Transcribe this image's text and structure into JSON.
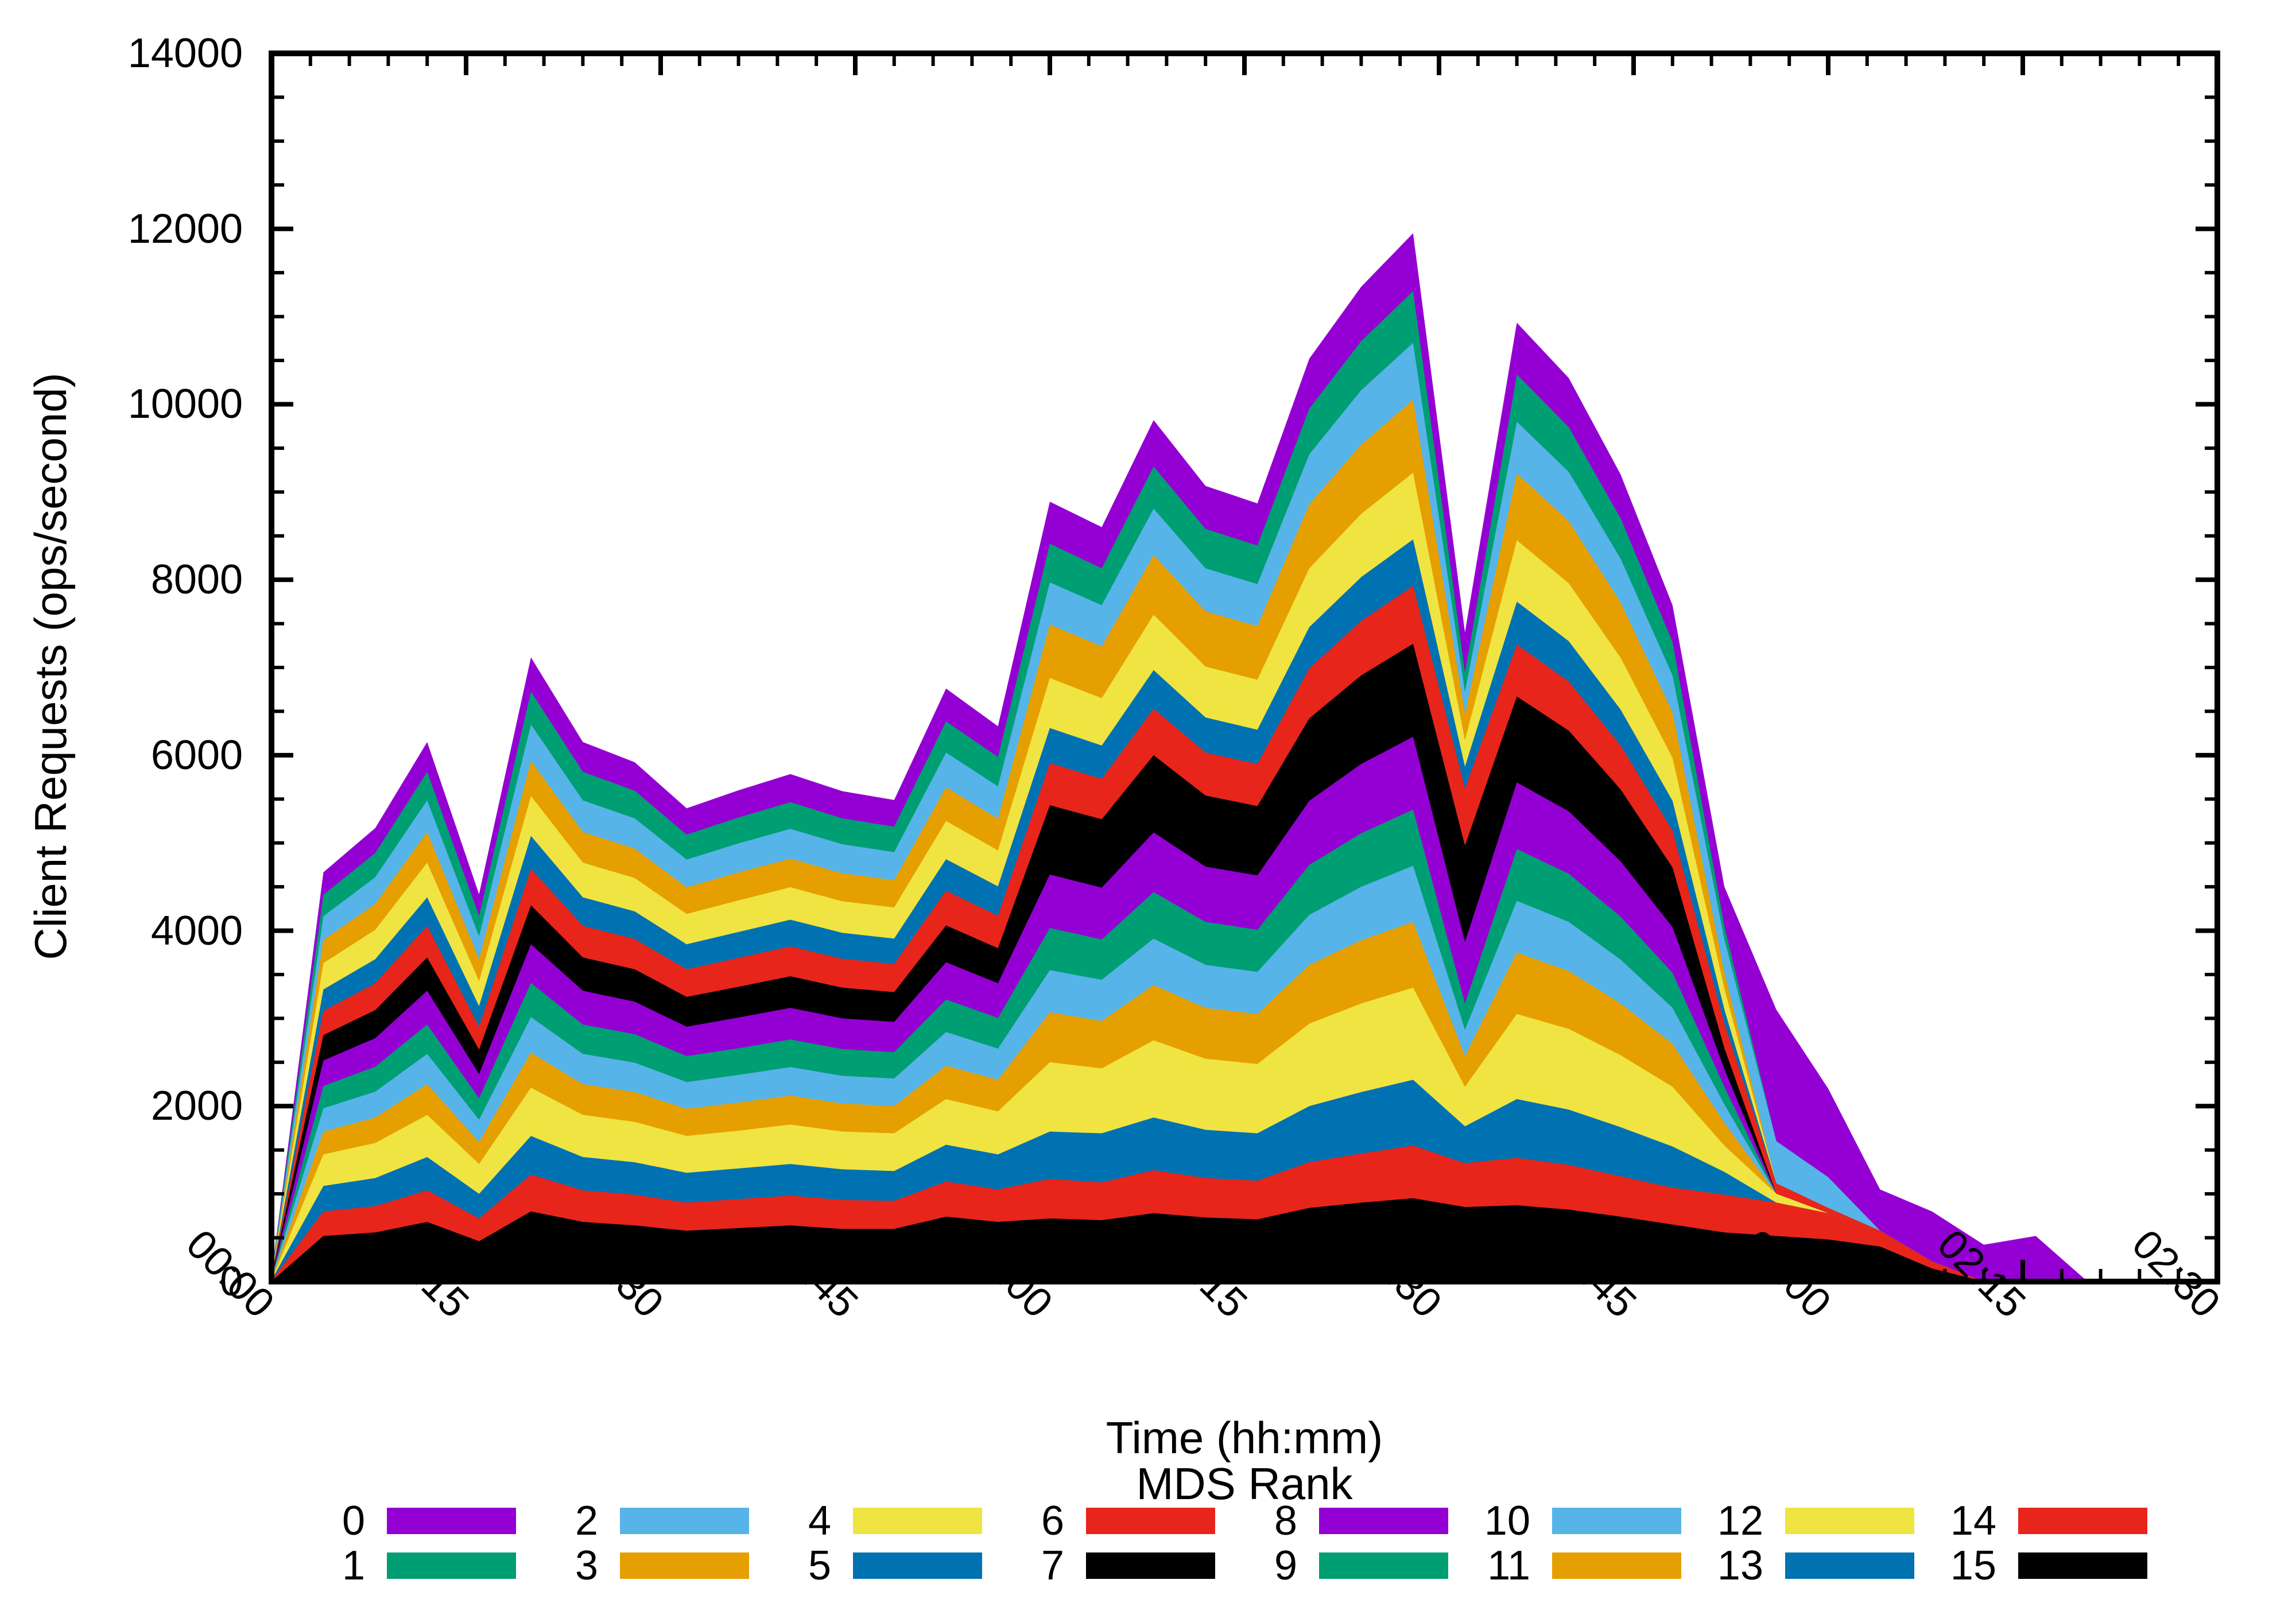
{
  "page": {
    "background": "#ffffff"
  },
  "legend": {
    "title": "MDS Rank",
    "items": [
      {
        "label": "0",
        "color": "#9400D3"
      },
      {
        "label": "1",
        "color": "#009E73"
      },
      {
        "label": "2",
        "color": "#56B4E9"
      },
      {
        "label": "3",
        "color": "#E69F00"
      },
      {
        "label": "4",
        "color": "#F0E442"
      },
      {
        "label": "5",
        "color": "#0072B2"
      },
      {
        "label": "6",
        "color": "#E8251B"
      },
      {
        "label": "7",
        "color": "#000000"
      },
      {
        "label": "8",
        "color": "#9400D3"
      },
      {
        "label": "9",
        "color": "#009E73"
      },
      {
        "label": "10",
        "color": "#56B4E9"
      },
      {
        "label": "11",
        "color": "#E69F00"
      },
      {
        "label": "12",
        "color": "#F0E442"
      },
      {
        "label": "13",
        "color": "#0072B2"
      },
      {
        "label": "14",
        "color": "#E8251B"
      },
      {
        "label": "15",
        "color": "#000000"
      }
    ]
  },
  "chart_data": {
    "type": "area",
    "stacked": true,
    "title": "",
    "xlabel": "Time (hh:mm)",
    "ylabel": "Client Requests (ops/second)",
    "grid": false,
    "legend_position": "bottom",
    "x_axis": {
      "range_minutes": [
        0,
        150
      ],
      "minor_tick_every_minutes": 3,
      "ticks": [
        {
          "minute": 0,
          "label": "00:00"
        },
        {
          "minute": 15,
          "label": "00:15"
        },
        {
          "minute": 30,
          "label": "00:30"
        },
        {
          "minute": 45,
          "label": "00:45"
        },
        {
          "minute": 60,
          "label": "01:00"
        },
        {
          "minute": 75,
          "label": "01:15"
        },
        {
          "minute": 90,
          "label": "01:30"
        },
        {
          "minute": 105,
          "label": "01:45"
        },
        {
          "minute": 120,
          "label": "02:00"
        },
        {
          "minute": 135,
          "label": "02:15"
        },
        {
          "minute": 150,
          "label": "02:30"
        }
      ]
    },
    "y_axis": {
      "range": [
        0,
        14000
      ],
      "minor_tick_every": 500,
      "ticks": [
        {
          "value": 0,
          "label": "0"
        },
        {
          "value": 2000,
          "label": "2000"
        },
        {
          "value": 4000,
          "label": "4000"
        },
        {
          "value": 6000,
          "label": "6000"
        },
        {
          "value": 8000,
          "label": "8000"
        },
        {
          "value": 10000,
          "label": "10000"
        },
        {
          "value": 12000,
          "label": "12000"
        },
        {
          "value": 14000,
          "label": "14000"
        }
      ]
    },
    "stack_order_bottom_to_top": [
      15,
      14,
      13,
      12,
      11,
      10,
      9,
      8,
      7,
      6,
      5,
      4,
      3,
      2,
      1,
      0
    ],
    "x_minutes": [
      0,
      4,
      8,
      12,
      16,
      20,
      24,
      28,
      32,
      36,
      40,
      44,
      48,
      52,
      56,
      60,
      64,
      68,
      72,
      76,
      80,
      84,
      88,
      92,
      96,
      100,
      104,
      108,
      112,
      116,
      120,
      124,
      128,
      132,
      136,
      140
    ],
    "series": [
      {
        "name": "0",
        "color": "#9400D3",
        "values": [
          5,
          255,
          285,
          340,
          245,
          390,
          340,
          325,
          300,
          310,
          320,
          310,
          305,
          375,
          350,
          480,
          470,
          530,
          490,
          480,
          570,
          620,
          660,
          460,
          590,
          560,
          500,
          420,
          450,
          1500,
          1010,
          470,
          570,
          420,
          520,
          0
        ]
      },
      {
        "name": "1",
        "color": "#009E73",
        "values": [
          5,
          245,
          275,
          325,
          235,
          375,
          325,
          315,
          285,
          295,
          305,
          295,
          290,
          355,
          335,
          440,
          420,
          480,
          450,
          440,
          520,
          560,
          590,
          220,
          540,
          510,
          460,
          380,
          150,
          0,
          0,
          0,
          0,
          0,
          0,
          0
        ]
      },
      {
        "name": "2",
        "color": "#56B4E9",
        "values": [
          5,
          270,
          305,
          360,
          260,
          415,
          360,
          345,
          315,
          330,
          340,
          330,
          320,
          395,
          370,
          480,
          470,
          530,
          490,
          480,
          570,
          620,
          650,
          250,
          590,
          560,
          500,
          420,
          380,
          480,
          350,
          0,
          0,
          0,
          0,
          0
        ]
      },
      {
        "name": "3",
        "color": "#E69F00",
        "values": [
          5,
          265,
          295,
          350,
          250,
          400,
          350,
          335,
          305,
          320,
          325,
          320,
          310,
          385,
          360,
          610,
          590,
          680,
          630,
          610,
          730,
          790,
          830,
          300,
          760,
          710,
          630,
          520,
          180,
          0,
          0,
          0,
          0,
          0,
          0,
          0
        ]
      },
      {
        "name": "4",
        "color": "#F0E442",
        "values": [
          5,
          300,
          335,
          395,
          285,
          455,
          395,
          380,
          345,
          360,
          370,
          360,
          355,
          435,
          410,
          570,
          540,
          630,
          580,
          570,
          670,
          720,
          760,
          300,
          700,
          660,
          590,
          490,
          240,
          0,
          0,
          0,
          0,
          0,
          0,
          0
        ]
      },
      {
        "name": "5",
        "color": "#0072B2",
        "values": [
          5,
          245,
          275,
          325,
          235,
          375,
          325,
          315,
          285,
          295,
          305,
          295,
          290,
          360,
          335,
          400,
          380,
          440,
          400,
          390,
          470,
          500,
          530,
          250,
          490,
          460,
          410,
          340,
          160,
          0,
          0,
          0,
          0,
          0,
          0,
          0
        ]
      },
      {
        "name": "6",
        "color": "#E8251B",
        "values": [
          5,
          275,
          305,
          360,
          260,
          415,
          360,
          345,
          315,
          330,
          340,
          330,
          320,
          395,
          370,
          480,
          460,
          530,
          490,
          480,
          570,
          620,
          660,
          650,
          590,
          560,
          500,
          420,
          280,
          120,
          60,
          0,
          0,
          0,
          0,
          0
        ]
      },
      {
        "name": "7",
        "color": "#000000",
        "values": [
          5,
          290,
          320,
          380,
          280,
          445,
          380,
          370,
          340,
          350,
          360,
          350,
          340,
          420,
          400,
          790,
          780,
          880,
          810,
          790,
          940,
          1010,
          1060,
          1100,
          980,
          920,
          820,
          680,
          240,
          0,
          0,
          0,
          0,
          0,
          0,
          0
        ]
      },
      {
        "name": "8",
        "color": "#9400D3",
        "values": [
          5,
          290,
          325,
          385,
          275,
          440,
          385,
          370,
          335,
          350,
          360,
          350,
          345,
          425,
          395,
          610,
          590,
          680,
          630,
          620,
          730,
          790,
          830,
          700,
          760,
          710,
          630,
          520,
          200,
          0,
          0,
          0,
          0,
          0,
          0,
          0
        ]
      },
      {
        "name": "9",
        "color": "#009E73",
        "values": [
          5,
          255,
          285,
          335,
          245,
          390,
          335,
          325,
          295,
          305,
          315,
          305,
          300,
          370,
          350,
          480,
          460,
          530,
          490,
          480,
          570,
          610,
          640,
          300,
          590,
          550,
          490,
          400,
          200,
          0,
          0,
          0,
          0,
          0,
          0,
          0
        ]
      },
      {
        "name": "10",
        "color": "#56B4E9",
        "values": [
          5,
          265,
          295,
          345,
          255,
          405,
          345,
          335,
          305,
          315,
          325,
          315,
          315,
          385,
          355,
          480,
          470,
          530,
          490,
          480,
          570,
          610,
          640,
          300,
          590,
          560,
          500,
          410,
          210,
          0,
          0,
          0,
          0,
          0,
          0,
          0
        ]
      },
      {
        "name": "11",
        "color": "#E69F00",
        "values": [
          5,
          260,
          290,
          350,
          250,
          400,
          350,
          340,
          310,
          320,
          330,
          320,
          310,
          380,
          360,
          570,
          540,
          630,
          580,
          570,
          670,
          720,
          750,
          350,
          700,
          660,
          590,
          490,
          260,
          0,
          0,
          0,
          0,
          0,
          0,
          0
        ]
      },
      {
        "name": "12",
        "color": "#F0E442",
        "values": [
          5,
          360,
          400,
          480,
          340,
          550,
          480,
          460,
          420,
          430,
          450,
          430,
          430,
          520,
          490,
          790,
          740,
          880,
          810,
          790,
          940,
          1010,
          1050,
          450,
          970,
          920,
          820,
          680,
          300,
          100,
          0,
          0,
          0,
          0,
          0,
          0
        ]
      },
      {
        "name": "13",
        "color": "#0072B2",
        "values": [
          5,
          290,
          320,
          380,
          280,
          440,
          380,
          370,
          340,
          350,
          360,
          350,
          340,
          420,
          400,
          540,
          560,
          600,
          550,
          540,
          640,
          700,
          750,
          420,
          670,
          630,
          560,
          470,
          260,
          0,
          0,
          0,
          0,
          0,
          0,
          0
        ]
      },
      {
        "name": "14",
        "color": "#E8251B",
        "values": [
          5,
          280,
          300,
          360,
          260,
          420,
          360,
          350,
          320,
          330,
          340,
          330,
          320,
          400,
          370,
          450,
          430,
          490,
          450,
          440,
          520,
          560,
          600,
          500,
          540,
          510,
          460,
          420,
          430,
          380,
          300,
          180,
          80,
          0,
          0,
          0
        ]
      },
      {
        "name": "15",
        "color": "#000000",
        "values": [
          5,
          520,
          560,
          680,
          460,
          800,
          680,
          640,
          580,
          610,
          640,
          600,
          600,
          740,
          680,
          720,
          700,
          780,
          730,
          710,
          840,
          900,
          950,
          850,
          870,
          820,
          740,
          650,
          560,
          520,
          480,
          400,
          150,
          0,
          0,
          0
        ]
      }
    ]
  }
}
